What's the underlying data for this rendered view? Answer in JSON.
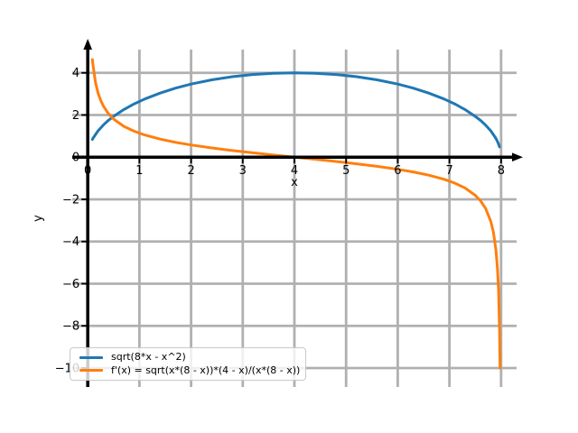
{
  "figure": {
    "background": "#ffffff",
    "title": ""
  },
  "legend": {
    "position": "lower left",
    "entries": [
      {
        "label": "sqrt(8*x - x^2)",
        "color": "#1f77b4"
      },
      {
        "label": "f'(x) = sqrt(x*(8 - x))*(4 - x)/(x*(8 - x))",
        "color": "#ff7f0e"
      }
    ]
  },
  "chart_data": {
    "type": "line",
    "title": "",
    "xlabel": "x",
    "ylabel": "y",
    "xlim": [
      -0.3,
      8.3
    ],
    "ylim": [
      -10.9,
      5.1
    ],
    "grid": true,
    "grid_color": "#b0b0b0",
    "axis_color": "#000000",
    "tick_color": "#000000",
    "legend_position": "lower left",
    "xticks": {
      "values": [
        0,
        1,
        2,
        3,
        4,
        5,
        6,
        7,
        8
      ],
      "labels": [
        "0",
        "1",
        "2",
        "3",
        "4",
        "5",
        "6",
        "7",
        "8"
      ]
    },
    "yticks": {
      "values": [
        4,
        2,
        0,
        -2,
        -4,
        -6,
        -8,
        -10
      ],
      "labels": [
        "4",
        "2",
        "0",
        "−2",
        "−4",
        "−6",
        "−8",
        "−10"
      ]
    },
    "series": [
      {
        "name": "sqrt(8*x - x^2)",
        "color": "#1f77b4",
        "points": [
          [
            0.09,
            0.844
          ],
          [
            0.1,
            0.889
          ],
          [
            0.2,
            1.249
          ],
          [
            0.3,
            1.52
          ],
          [
            0.4,
            1.744
          ],
          [
            0.5,
            1.936
          ],
          [
            0.7,
            2.261
          ],
          [
            0.9,
            2.528
          ],
          [
            1.1,
            2.755
          ],
          [
            1.4,
            3.04
          ],
          [
            1.7,
            3.273
          ],
          [
            2,
            3.464
          ],
          [
            2.4,
            3.666
          ],
          [
            2.8,
            3.816
          ],
          [
            3.2,
            3.919
          ],
          [
            3.6,
            3.98
          ],
          [
            4,
            4
          ],
          [
            4.4,
            3.98
          ],
          [
            4.8,
            3.919
          ],
          [
            5.2,
            3.816
          ],
          [
            5.6,
            3.666
          ],
          [
            6,
            3.464
          ],
          [
            6.3,
            3.273
          ],
          [
            6.6,
            3.04
          ],
          [
            6.9,
            2.755
          ],
          [
            7.1,
            2.528
          ],
          [
            7.3,
            2.261
          ],
          [
            7.5,
            1.936
          ],
          [
            7.6,
            1.744
          ],
          [
            7.7,
            1.52
          ],
          [
            7.8,
            1.249
          ],
          [
            7.9,
            0.889
          ],
          [
            7.93,
            0.745
          ],
          [
            7.95,
            0.63
          ],
          [
            7.97,
            0.49
          ]
        ]
      },
      {
        "name": "f'(x) = sqrt(x*(8 - x))*(4 - x)/(x*(8 - x))",
        "color": "#ff7f0e",
        "points": [
          [
            0.09,
            4.63
          ],
          [
            0.1,
            4.39
          ],
          [
            0.15,
            3.55
          ],
          [
            0.2,
            3.04
          ],
          [
            0.25,
            2.69
          ],
          [
            0.3,
            2.434
          ],
          [
            0.4,
            2.065
          ],
          [
            0.5,
            1.808
          ],
          [
            0.7,
            1.46
          ],
          [
            0.9,
            1.227
          ],
          [
            1.1,
            1.053
          ],
          [
            1.4,
            0.855
          ],
          [
            1.7,
            0.703
          ],
          [
            2,
            0.577
          ],
          [
            2.4,
            0.436
          ],
          [
            2.8,
            0.314
          ],
          [
            3.2,
            0.204
          ],
          [
            3.6,
            0.1
          ],
          [
            4,
            0
          ],
          [
            4.4,
            -0.1
          ],
          [
            4.8,
            -0.204
          ],
          [
            5.2,
            -0.314
          ],
          [
            5.6,
            -0.436
          ],
          [
            6,
            -0.577
          ],
          [
            6.3,
            -0.703
          ],
          [
            6.6,
            -0.855
          ],
          [
            6.9,
            -1.053
          ],
          [
            7.1,
            -1.227
          ],
          [
            7.3,
            -1.46
          ],
          [
            7.5,
            -1.808
          ],
          [
            7.6,
            -2.065
          ],
          [
            7.7,
            -2.434
          ],
          [
            7.8,
            -3.04
          ],
          [
            7.85,
            -3.55
          ],
          [
            7.9,
            -4.39
          ],
          [
            7.93,
            -5.27
          ],
          [
            7.95,
            -6.27
          ],
          [
            7.97,
            -8.12
          ],
          [
            7.98,
            -10.0
          ]
        ]
      }
    ]
  }
}
